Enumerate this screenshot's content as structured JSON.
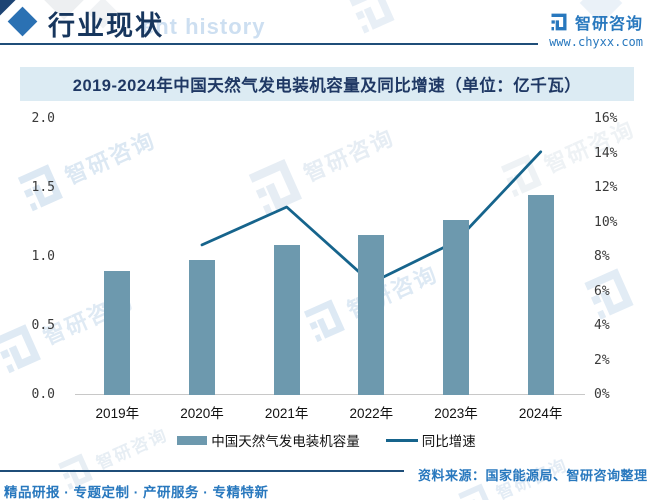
{
  "header": {
    "section_title": "行业现状",
    "watermark_text": "ent history",
    "brand": {
      "name": "智研咨询",
      "url": "www.chyxx.com"
    }
  },
  "watermark": {
    "label": "智研咨询"
  },
  "chart_data": {
    "type": "bar",
    "combo": "bar+line dual-axis",
    "title": "2019-2024年中国天然气发电装机容量及同比增速（单位：亿千瓦）",
    "categories": [
      "2019年",
      "2020年",
      "2021年",
      "2022年",
      "2023年",
      "2024年"
    ],
    "series": [
      {
        "name": "中国天然气发电装机容量",
        "type": "bar",
        "axis": "left",
        "unit": "亿千瓦",
        "values": [
          0.9,
          0.98,
          1.09,
          1.16,
          1.27,
          1.45
        ]
      },
      {
        "name": "同比增速",
        "type": "line",
        "axis": "right",
        "unit": "%",
        "values": [
          null,
          8.7,
          10.9,
          6.5,
          8.9,
          14.1
        ]
      }
    ],
    "left_axis": {
      "min": 0,
      "max": 2.0,
      "ticks": [
        "0.0",
        "0.5",
        "1.0",
        "1.5",
        "2.0"
      ]
    },
    "right_axis": {
      "min": 0,
      "max": 16,
      "ticks": [
        "0%",
        "2%",
        "4%",
        "6%",
        "8%",
        "10%",
        "12%",
        "14%",
        "16%"
      ]
    },
    "grid": false,
    "legend_position": "bottom",
    "colors": {
      "bar": "#6d99ae",
      "line": "#16648c"
    }
  },
  "colors": {
    "brand_blue": "#2878be",
    "dark_navy": "#17365d",
    "banner_bg": "#dcebf3",
    "banner_text": "#1f3864",
    "axis_gray": "#c8c8c8"
  },
  "footer": {
    "source": "资料来源：国家能源局、智研咨询整理",
    "tagline": "精品研报 · 专题定制 · 产研服务 · 专精特新"
  }
}
